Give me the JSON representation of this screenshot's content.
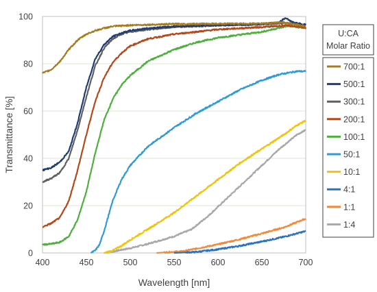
{
  "chart_data": {
    "type": "line",
    "title": "",
    "xlabel": "Wavelength [nm]",
    "ylabel": "Transmittance [%]",
    "xlim": [
      400,
      700
    ],
    "ylim": [
      0,
      100
    ],
    "x_ticks": [
      400,
      450,
      500,
      550,
      600,
      650,
      700
    ],
    "y_ticks": [
      0,
      20,
      40,
      60,
      80,
      100
    ],
    "grid": "horizontal",
    "legend": {
      "title_line1": "U:CA",
      "title_line2": "Molar Ratio",
      "placement": "right"
    },
    "series": [
      {
        "name": "700:1",
        "color": "#a67c1f",
        "points": [
          [
            400,
            76
          ],
          [
            410,
            77.5
          ],
          [
            420,
            81
          ],
          [
            430,
            86
          ],
          [
            440,
            90
          ],
          [
            450,
            92.5
          ],
          [
            460,
            94
          ],
          [
            470,
            95
          ],
          [
            480,
            95.8
          ],
          [
            500,
            96.3
          ],
          [
            550,
            96.8
          ],
          [
            600,
            96.9
          ],
          [
            650,
            97
          ],
          [
            675,
            97.5
          ],
          [
            690,
            96.5
          ],
          [
            700,
            96
          ]
        ]
      },
      {
        "name": "500:1",
        "color": "#1f3d73",
        "points": [
          [
            400,
            35
          ],
          [
            410,
            36
          ],
          [
            420,
            38.5
          ],
          [
            430,
            43
          ],
          [
            440,
            55
          ],
          [
            450,
            70
          ],
          [
            460,
            82
          ],
          [
            470,
            88
          ],
          [
            480,
            91.5
          ],
          [
            490,
            93
          ],
          [
            500,
            94
          ],
          [
            520,
            95
          ],
          [
            550,
            95.8
          ],
          [
            600,
            96.3
          ],
          [
            650,
            96.8
          ],
          [
            670,
            97.5
          ],
          [
            677,
            99.5
          ],
          [
            685,
            97.5
          ],
          [
            700,
            96.5
          ]
        ]
      },
      {
        "name": "300:1",
        "color": "#5f5f5f",
        "points": [
          [
            400,
            30
          ],
          [
            410,
            31.5
          ],
          [
            420,
            34
          ],
          [
            430,
            40
          ],
          [
            440,
            52
          ],
          [
            450,
            66
          ],
          [
            460,
            79
          ],
          [
            470,
            86.5
          ],
          [
            480,
            90.5
          ],
          [
            490,
            92.5
          ],
          [
            500,
            93.5
          ],
          [
            520,
            94.5
          ],
          [
            550,
            95.5
          ],
          [
            600,
            96.2
          ],
          [
            650,
            96.7
          ],
          [
            680,
            97.2
          ],
          [
            700,
            96.2
          ]
        ]
      },
      {
        "name": "200:1",
        "color": "#b5471b",
        "points": [
          [
            400,
            11
          ],
          [
            410,
            12.5
          ],
          [
            420,
            15
          ],
          [
            430,
            22
          ],
          [
            440,
            35
          ],
          [
            450,
            50
          ],
          [
            460,
            64
          ],
          [
            470,
            74
          ],
          [
            480,
            80.5
          ],
          [
            490,
            84.5
          ],
          [
            500,
            87.5
          ],
          [
            520,
            90.5
          ],
          [
            550,
            92.5
          ],
          [
            600,
            94.5
          ],
          [
            650,
            95.5
          ],
          [
            680,
            96.2
          ],
          [
            700,
            95.2
          ]
        ]
      },
      {
        "name": "100:1",
        "color": "#4daf3c",
        "points": [
          [
            400,
            3.5
          ],
          [
            410,
            3.8
          ],
          [
            420,
            4.5
          ],
          [
            430,
            7
          ],
          [
            440,
            14
          ],
          [
            450,
            26
          ],
          [
            460,
            42
          ],
          [
            470,
            56
          ],
          [
            480,
            65
          ],
          [
            490,
            71
          ],
          [
            500,
            75
          ],
          [
            520,
            81
          ],
          [
            550,
            86
          ],
          [
            575,
            89
          ],
          [
            600,
            91
          ],
          [
            650,
            93.5
          ],
          [
            680,
            96
          ],
          [
            700,
            95
          ]
        ]
      },
      {
        "name": "50:1",
        "color": "#2e9bd6",
        "points": [
          [
            455,
            0
          ],
          [
            460,
            1
          ],
          [
            465,
            3.5
          ],
          [
            470,
            9
          ],
          [
            480,
            22
          ],
          [
            490,
            31
          ],
          [
            500,
            37
          ],
          [
            520,
            45
          ],
          [
            550,
            53
          ],
          [
            575,
            59
          ],
          [
            600,
            64
          ],
          [
            625,
            69
          ],
          [
            650,
            73
          ],
          [
            670,
            75.5
          ],
          [
            690,
            76.8
          ],
          [
            700,
            76.8
          ]
        ]
      },
      {
        "name": "10:1",
        "color": "#f2c20c",
        "points": [
          [
            470,
            0
          ],
          [
            480,
            1
          ],
          [
            490,
            3
          ],
          [
            500,
            5.5
          ],
          [
            520,
            10
          ],
          [
            550,
            17
          ],
          [
            575,
            24
          ],
          [
            600,
            31
          ],
          [
            625,
            38
          ],
          [
            650,
            44
          ],
          [
            675,
            50
          ],
          [
            690,
            54
          ],
          [
            700,
            56
          ]
        ]
      },
      {
        "name": "4:1",
        "color": "#2b73bf",
        "points": [
          [
            550,
            0
          ],
          [
            575,
            0.4
          ],
          [
            600,
            1.5
          ],
          [
            625,
            3
          ],
          [
            650,
            4.8
          ],
          [
            675,
            6.8
          ],
          [
            700,
            9.2
          ]
        ]
      },
      {
        "name": "1:1",
        "color": "#f08a3c",
        "points": [
          [
            530,
            0
          ],
          [
            560,
            0.7
          ],
          [
            575,
            1.8
          ],
          [
            600,
            3.6
          ],
          [
            625,
            5.8
          ],
          [
            650,
            8.2
          ],
          [
            675,
            10.8
          ],
          [
            700,
            14.5
          ]
        ]
      },
      {
        "name": "1:4",
        "color": "#a8a8a8",
        "points": [
          [
            470,
            0
          ],
          [
            480,
            0.6
          ],
          [
            500,
            2
          ],
          [
            520,
            3.8
          ],
          [
            550,
            7
          ],
          [
            570,
            10
          ],
          [
            590,
            16
          ],
          [
            610,
            23
          ],
          [
            630,
            30
          ],
          [
            650,
            37
          ],
          [
            670,
            44
          ],
          [
            690,
            50
          ],
          [
            700,
            52
          ]
        ]
      }
    ]
  }
}
